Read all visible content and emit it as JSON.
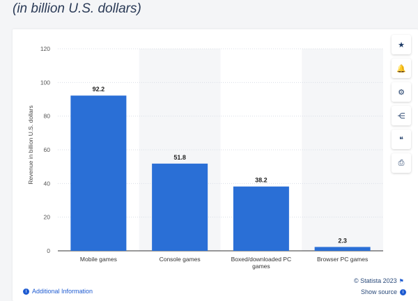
{
  "header": {
    "subtitle": "(in billion U.S. dollars)"
  },
  "chart_data": {
    "type": "bar",
    "categories": [
      "Mobile games",
      "Console games",
      "Boxed/downloaded PC games",
      "Browser PC games"
    ],
    "values": [
      92.2,
      51.8,
      38.2,
      2.3
    ],
    "ylabel": "Revenue in billion U.S. dollars",
    "ylim": [
      0,
      120
    ],
    "yticks": [
      0,
      20,
      40,
      60,
      80,
      100,
      120
    ],
    "grid": true,
    "bar_color": "#2a6fd6"
  },
  "toolbar": {
    "icons": [
      "star-icon",
      "bell-icon",
      "gear-icon",
      "share-icon",
      "quote-icon",
      "print-icon"
    ],
    "glyphs": [
      "★",
      "🔔",
      "⚙",
      "⋲",
      "❝",
      "⎙"
    ]
  },
  "footer": {
    "credit": "© Statista 2023",
    "additional_info": "Additional Information",
    "show_source": "Show source"
  }
}
